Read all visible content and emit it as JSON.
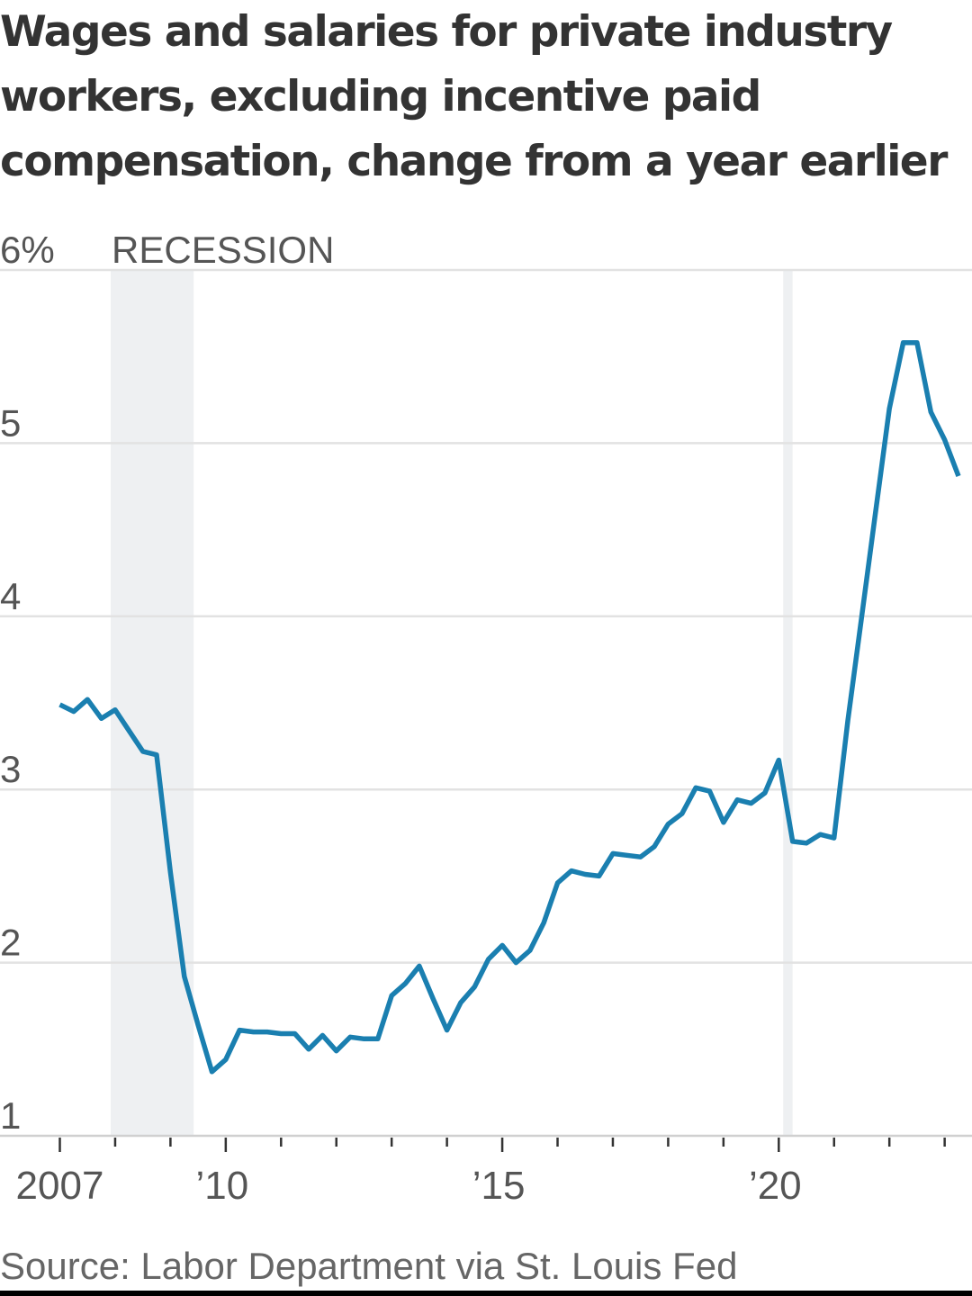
{
  "title": "Wages and salaries for private industry workers, excluding incentive paid compensation, change from a year earlier",
  "source": "Source: Labor Department via St. Louis Fed",
  "colors": {
    "line": "#1a7fb0",
    "recession": "#eef0f2",
    "grid": "#e2e2e2",
    "axis": "#d0d0d0",
    "tick": "#333333",
    "label": "#555555",
    "title": "#333333"
  },
  "chart_data": {
    "type": "line",
    "title": "Wages and salaries for private industry workers, excluding incentive paid compensation, change from a year earlier",
    "ylabel": "",
    "xlabel": "",
    "ylim": [
      1,
      6
    ],
    "xlim": [
      2006.8,
      2023.25
    ],
    "grid": true,
    "legend": "none",
    "y_ticks": [
      1,
      2,
      3,
      4,
      5,
      6
    ],
    "y_tick_labels": [
      "1",
      "2",
      "3",
      "4",
      "5",
      "6%"
    ],
    "x_major_ticks": [
      2007,
      2010,
      2015,
      2020
    ],
    "x_tick_labels": [
      "2007",
      "’10",
      "’15",
      "’20"
    ],
    "x_minor_ticks": [
      2008,
      2009,
      2011,
      2012,
      2013,
      2014,
      2016,
      2017,
      2018,
      2019,
      2021,
      2022,
      2023
    ],
    "recessions": [
      {
        "start": 2007.92,
        "end": 2009.42,
        "label": "RECESSION"
      },
      {
        "start": 2020.08,
        "end": 2020.25,
        "label": ""
      }
    ],
    "series": [
      {
        "x": [
          2007.0,
          2007.25,
          2007.5,
          2007.75,
          2008.0,
          2008.25,
          2008.5,
          2008.75,
          2009.0,
          2009.25,
          2009.5,
          2009.75,
          2010.0,
          2010.25,
          2010.5,
          2010.75,
          2011.0,
          2011.25,
          2011.5,
          2011.75,
          2012.0,
          2012.25,
          2012.5,
          2012.75,
          2013.0,
          2013.25,
          2013.5,
          2013.75,
          2014.0,
          2014.25,
          2014.5,
          2014.75,
          2015.0,
          2015.25,
          2015.5,
          2015.75,
          2016.0,
          2016.25,
          2016.5,
          2016.75,
          2017.0,
          2017.25,
          2017.5,
          2017.75,
          2018.0,
          2018.25,
          2018.5,
          2018.75,
          2019.0,
          2019.25,
          2019.5,
          2019.75,
          2020.0,
          2020.25,
          2020.5,
          2020.75,
          2021.0,
          2021.25,
          2021.5,
          2021.75,
          2022.0,
          2022.25,
          2022.5,
          2022.75,
          2023.0,
          2023.25
        ],
        "y": [
          3.49,
          3.45,
          3.52,
          3.41,
          3.46,
          3.34,
          3.22,
          3.2,
          2.52,
          1.92,
          1.64,
          1.37,
          1.44,
          1.61,
          1.6,
          1.6,
          1.59,
          1.59,
          1.5,
          1.58,
          1.49,
          1.57,
          1.56,
          1.56,
          1.81,
          1.88,
          1.98,
          1.79,
          1.61,
          1.77,
          1.86,
          2.02,
          2.1,
          2.0,
          2.07,
          2.23,
          2.46,
          2.53,
          2.51,
          2.5,
          2.63,
          2.62,
          2.61,
          2.67,
          2.8,
          2.86,
          3.01,
          2.99,
          2.81,
          2.94,
          2.92,
          2.98,
          3.17,
          2.7,
          2.69,
          2.74,
          2.72,
          3.4,
          4.0,
          4.6,
          5.2,
          5.58,
          5.58,
          5.18,
          5.02,
          4.81
        ]
      }
    ]
  }
}
